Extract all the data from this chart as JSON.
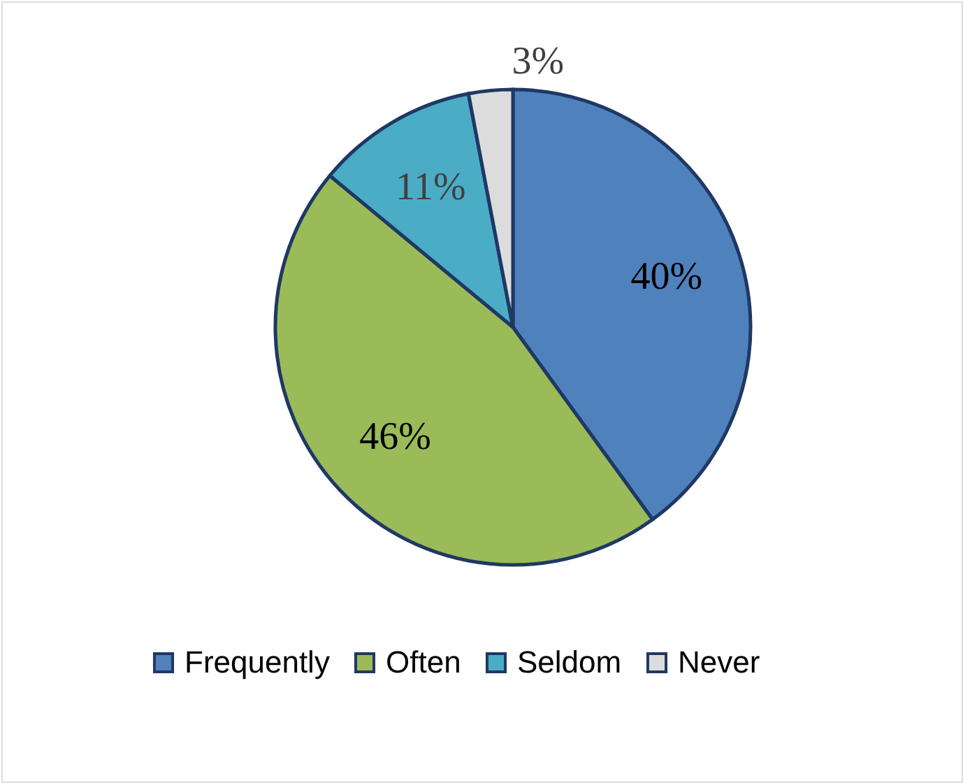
{
  "chart_data": {
    "type": "pie",
    "categories": [
      "Frequently",
      "Often",
      "Seldom",
      "Never"
    ],
    "values": [
      40,
      46,
      11,
      3
    ],
    "value_labels": [
      "40%",
      "46%",
      "11%",
      "3%"
    ],
    "colors": [
      "#4f81bd",
      "#9bbb59",
      "#4bacc6",
      "#dcdcdc"
    ],
    "legend": "bottom"
  }
}
